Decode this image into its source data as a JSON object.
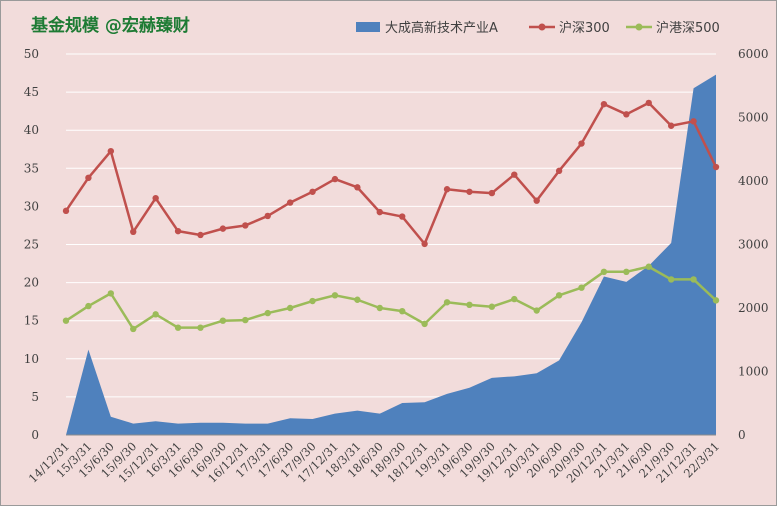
{
  "title": "基金规模 @宏赫臻财",
  "colors": {
    "area": "#4f81bd",
    "hs300": "#c0504d",
    "hgs500": "#9bbb59",
    "background": "#f2dcdb",
    "grid": "#ffffff",
    "title": "#1e7b34"
  },
  "chart_data": {
    "type": "area+line",
    "categories": [
      "14/12/31",
      "15/3/31",
      "15/6/30",
      "15/9/30",
      "15/12/31",
      "16/3/31",
      "16/6/30",
      "16/9/30",
      "16/12/31",
      "17/3/31",
      "17/6/30",
      "17/9/30",
      "17/12/31",
      "18/3/31",
      "18/6/30",
      "18/9/30",
      "18/12/31",
      "19/3/31",
      "19/6/30",
      "19/9/30",
      "19/12/31",
      "20/3/31",
      "20/6/30",
      "20/9/30",
      "20/12/31",
      "21/3/31",
      "21/6/30",
      "21/9/30",
      "21/12/31",
      "22/3/31"
    ],
    "series": [
      {
        "name": "大成高新技术产业A",
        "type": "area",
        "axis": "left",
        "values": [
          0,
          11.2,
          2.4,
          1.5,
          1.8,
          1.5,
          1.6,
          1.6,
          1.5,
          1.5,
          2.2,
          2.1,
          2.8,
          3.2,
          2.8,
          4.2,
          4.3,
          5.4,
          6.2,
          7.5,
          7.7,
          8.1,
          9.8,
          14.8,
          20.8,
          20.1,
          22.2,
          25.2,
          45.5,
          47.3
        ]
      },
      {
        "name": "沪深300",
        "type": "line",
        "axis": "right",
        "values": [
          3530,
          4050,
          4470,
          3200,
          3730,
          3210,
          3150,
          3250,
          3300,
          3450,
          3660,
          3830,
          4030,
          3900,
          3510,
          3440,
          3010,
          3870,
          3830,
          3810,
          4100,
          3690,
          4160,
          4590,
          5210,
          5050,
          5230,
          4870,
          4940,
          4220
        ]
      },
      {
        "name": "沪港深500",
        "type": "line",
        "axis": "right",
        "values": [
          1800,
          2030,
          2230,
          1670,
          1900,
          1690,
          1690,
          1800,
          1810,
          1920,
          2000,
          2110,
          2200,
          2130,
          2000,
          1950,
          1750,
          2090,
          2050,
          2020,
          2140,
          1960,
          2200,
          2320,
          2570,
          2570,
          2650,
          2450,
          2450,
          2120
        ]
      }
    ],
    "y_left": {
      "min": 0,
      "max": 50,
      "ticks": [
        0,
        5,
        10,
        15,
        20,
        25,
        30,
        35,
        40,
        45,
        50
      ]
    },
    "y_right": {
      "min": 0,
      "max": 6000,
      "ticks": [
        0,
        1000,
        2000,
        3000,
        4000,
        5000,
        6000
      ]
    },
    "grid": true,
    "legend_position": "top-right"
  },
  "legend": {
    "area_label": "大成高新技术产业A",
    "hs300_label": "沪深300",
    "hgs500_label": "沪港深500"
  }
}
